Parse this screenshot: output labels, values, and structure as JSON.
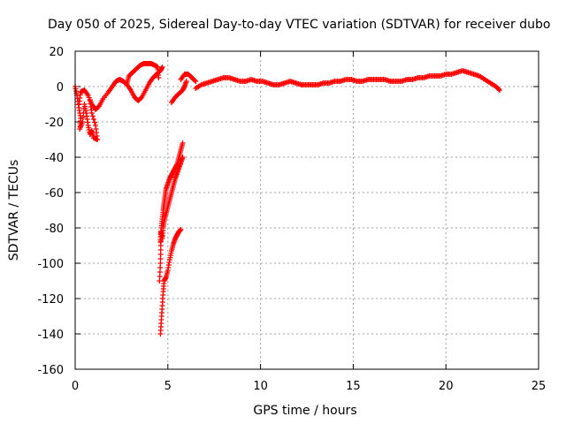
{
  "chart_data": {
    "type": "scatter",
    "title": "Day 050 of 2025, Sidereal Day-to-day VTEC variation (SDTVAR) for receiver dubo",
    "xlabel": "GPS time / hours",
    "ylabel": "SDTVAR / TECUs",
    "xlim": [
      0,
      25
    ],
    "ylim": [
      -160,
      20
    ],
    "xticks": [
      "0",
      "5",
      "10",
      "15",
      "20",
      "25"
    ],
    "yticks": [
      "20",
      "0",
      "-20",
      "-40",
      "-60",
      "-80",
      "-100",
      "-120",
      "-140",
      "-160"
    ],
    "grid": true,
    "marker": "+",
    "series": [
      {
        "name": "SDTVAR",
        "color": "#ff0000",
        "segments": [
          [
            [
              0.0,
              0
            ],
            [
              0.1,
              -5
            ],
            [
              0.2,
              -12
            ],
            [
              0.3,
              -18
            ],
            [
              0.25,
              -24
            ],
            [
              0.4,
              -20
            ],
            [
              0.5,
              -10
            ],
            [
              0.6,
              -15
            ],
            [
              0.7,
              -22
            ],
            [
              0.8,
              -27
            ],
            [
              0.9,
              -25
            ],
            [
              1.0,
              -29
            ],
            [
              1.2,
              -30
            ],
            [
              1.1,
              -22
            ],
            [
              0.9,
              -15
            ],
            [
              0.8,
              -8
            ]
          ],
          [
            [
              0.2,
              -10
            ],
            [
              0.3,
              -3
            ],
            [
              0.5,
              -2
            ],
            [
              0.7,
              -5
            ],
            [
              0.9,
              -10
            ],
            [
              1.1,
              -13
            ],
            [
              1.3,
              -11
            ],
            [
              1.5,
              -7
            ],
            [
              1.8,
              -3
            ],
            [
              2.0,
              0
            ],
            [
              2.2,
              3
            ],
            [
              2.4,
              4
            ],
            [
              2.6,
              3
            ],
            [
              2.8,
              1
            ],
            [
              3.0,
              -2
            ],
            [
              3.2,
              -6
            ],
            [
              3.4,
              -8
            ],
            [
              3.6,
              -6
            ],
            [
              3.8,
              -2
            ],
            [
              4.0,
              2
            ],
            [
              4.2,
              5
            ],
            [
              4.4,
              7
            ],
            [
              4.6,
              9
            ],
            [
              4.7,
              11
            ]
          ],
          [
            [
              2.8,
              2
            ],
            [
              2.9,
              6
            ],
            [
              3.1,
              8
            ],
            [
              3.3,
              10
            ],
            [
              3.5,
              12
            ],
            [
              3.7,
              13
            ],
            [
              3.9,
              13
            ],
            [
              4.1,
              13
            ],
            [
              4.3,
              12
            ],
            [
              4.45,
              11
            ],
            [
              4.5,
              5
            ]
          ],
          [
            [
              5.2,
              -9
            ],
            [
              5.4,
              -6
            ],
            [
              5.6,
              -4
            ],
            [
              5.8,
              -2
            ],
            [
              5.9,
              0
            ],
            [
              6.0,
              3
            ]
          ],
          [
            [
              5.7,
              4
            ],
            [
              5.9,
              7
            ],
            [
              6.1,
              7
            ],
            [
              6.3,
              5
            ],
            [
              6.5,
              3
            ]
          ],
          [
            [
              6.5,
              -1
            ],
            [
              6.8,
              1
            ],
            [
              7.1,
              2
            ],
            [
              7.4,
              3
            ],
            [
              7.7,
              4
            ],
            [
              8.0,
              5
            ],
            [
              8.3,
              5
            ],
            [
              8.6,
              4
            ],
            [
              8.9,
              3
            ],
            [
              9.2,
              3
            ],
            [
              9.5,
              4
            ],
            [
              9.8,
              3
            ],
            [
              10.1,
              3
            ],
            [
              10.4,
              2
            ],
            [
              10.7,
              1
            ],
            [
              11.0,
              1
            ],
            [
              11.3,
              2
            ],
            [
              11.6,
              3
            ],
            [
              11.9,
              2
            ],
            [
              12.2,
              1
            ],
            [
              12.5,
              1
            ],
            [
              12.8,
              1
            ],
            [
              13.1,
              1
            ],
            [
              13.4,
              2
            ],
            [
              13.7,
              2
            ],
            [
              14.0,
              3
            ],
            [
              14.3,
              3
            ],
            [
              14.6,
              4
            ],
            [
              14.9,
              4
            ],
            [
              15.2,
              3
            ],
            [
              15.5,
              3
            ],
            [
              15.8,
              4
            ],
            [
              16.1,
              4
            ],
            [
              16.4,
              4
            ],
            [
              16.7,
              4
            ],
            [
              17.0,
              3
            ],
            [
              17.3,
              3
            ],
            [
              17.6,
              3
            ],
            [
              17.9,
              4
            ],
            [
              18.2,
              4
            ],
            [
              18.5,
              5
            ],
            [
              18.8,
              5
            ],
            [
              19.1,
              6
            ],
            [
              19.4,
              6
            ],
            [
              19.7,
              6
            ],
            [
              20.0,
              7
            ],
            [
              20.3,
              7
            ],
            [
              20.6,
              8
            ],
            [
              20.9,
              9
            ],
            [
              21.2,
              8
            ],
            [
              21.5,
              7
            ],
            [
              21.8,
              6
            ],
            [
              22.1,
              4
            ],
            [
              22.4,
              2
            ],
            [
              22.7,
              0
            ],
            [
              22.9,
              -2
            ]
          ],
          [
            [
              4.6,
              -140
            ],
            [
              4.65,
              -132
            ],
            [
              4.7,
              -124
            ],
            [
              4.75,
              -116
            ],
            [
              4.8,
              -110
            ],
            [
              4.9,
              -108
            ],
            [
              5.0,
              -104
            ],
            [
              5.1,
              -98
            ],
            [
              5.2,
              -93
            ],
            [
              5.3,
              -89
            ],
            [
              5.4,
              -86
            ],
            [
              5.5,
              -84
            ],
            [
              5.6,
              -82
            ],
            [
              5.7,
              -81
            ]
          ],
          [
            [
              4.55,
              -110
            ],
            [
              4.6,
              -100
            ],
            [
              4.62,
              -90
            ],
            [
              4.65,
              -80
            ],
            [
              4.7,
              -75
            ],
            [
              4.75,
              -70
            ],
            [
              4.8,
              -66
            ],
            [
              4.85,
              -62
            ],
            [
              4.9,
              -58
            ],
            [
              5.0,
              -55
            ],
            [
              5.1,
              -52
            ],
            [
              5.2,
              -50
            ],
            [
              5.3,
              -48
            ],
            [
              5.4,
              -46
            ],
            [
              5.5,
              -44
            ],
            [
              5.6,
              -40
            ],
            [
              5.7,
              -36
            ],
            [
              5.8,
              -32
            ]
          ],
          [
            [
              4.6,
              -88
            ],
            [
              4.62,
              -82
            ],
            [
              4.7,
              -86
            ],
            [
              4.75,
              -80
            ],
            [
              4.8,
              -76
            ],
            [
              4.9,
              -72
            ],
            [
              5.0,
              -68
            ],
            [
              5.1,
              -64
            ],
            [
              5.2,
              -60
            ],
            [
              5.3,
              -56
            ],
            [
              5.4,
              -52
            ],
            [
              5.5,
              -49
            ],
            [
              5.6,
              -46
            ],
            [
              5.7,
              -43
            ],
            [
              5.8,
              -40
            ]
          ]
        ]
      }
    ]
  }
}
